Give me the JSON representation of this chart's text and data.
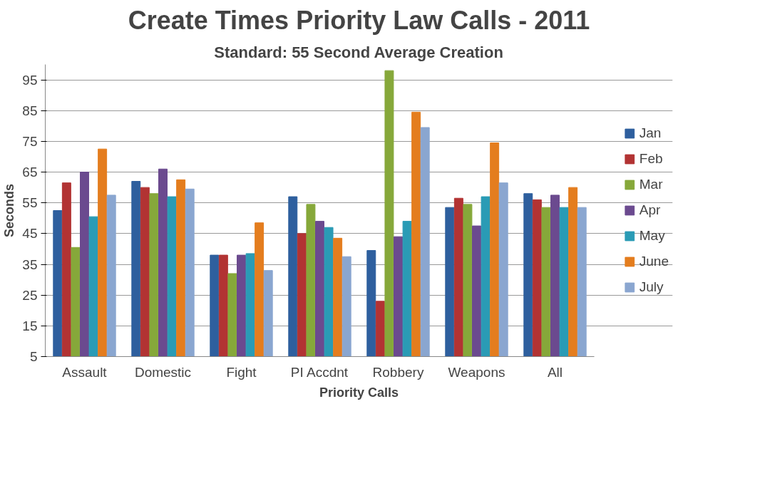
{
  "chart_data": {
    "type": "bar",
    "title": "Create Times Priority Law Calls - 2011",
    "subtitle": "Standard: 55 Second Average Creation",
    "xlabel": "Priority Calls",
    "ylabel": "Seconds",
    "categories": [
      "Assault",
      "Domestic",
      "Fight",
      "PI Accdnt",
      "Robbery",
      "Weapons",
      "All"
    ],
    "ylim": [
      5,
      100
    ],
    "yticks": [
      5,
      15,
      25,
      35,
      45,
      55,
      65,
      75,
      85,
      95
    ],
    "grid": "y",
    "legend": "right",
    "series": [
      {
        "name": "Jan",
        "color": "#2e5f9e",
        "values": [
          52.5,
          62,
          38,
          57,
          39.5,
          53.5,
          58
        ]
      },
      {
        "name": "Feb",
        "color": "#b23333",
        "values": [
          61.5,
          60,
          38,
          45,
          23,
          56.5,
          56
        ]
      },
      {
        "name": "Mar",
        "color": "#86a83a",
        "values": [
          40.5,
          58,
          32,
          54.5,
          98,
          54.5,
          53.5
        ]
      },
      {
        "name": "Apr",
        "color": "#6b4a8f",
        "values": [
          65,
          66,
          38,
          49,
          44,
          47.5,
          57.5
        ]
      },
      {
        "name": "May",
        "color": "#2a9bb5",
        "values": [
          50.5,
          57,
          38.5,
          47,
          49,
          57,
          53.5
        ]
      },
      {
        "name": "June",
        "color": "#e47d1e",
        "values": [
          72.5,
          62.5,
          48.5,
          43.5,
          84.5,
          74.5,
          60
        ]
      },
      {
        "name": "July",
        "color": "#8aa6d0",
        "values": [
          57.5,
          59.5,
          33,
          37.5,
          79.5,
          61.5,
          53.5
        ]
      }
    ]
  }
}
